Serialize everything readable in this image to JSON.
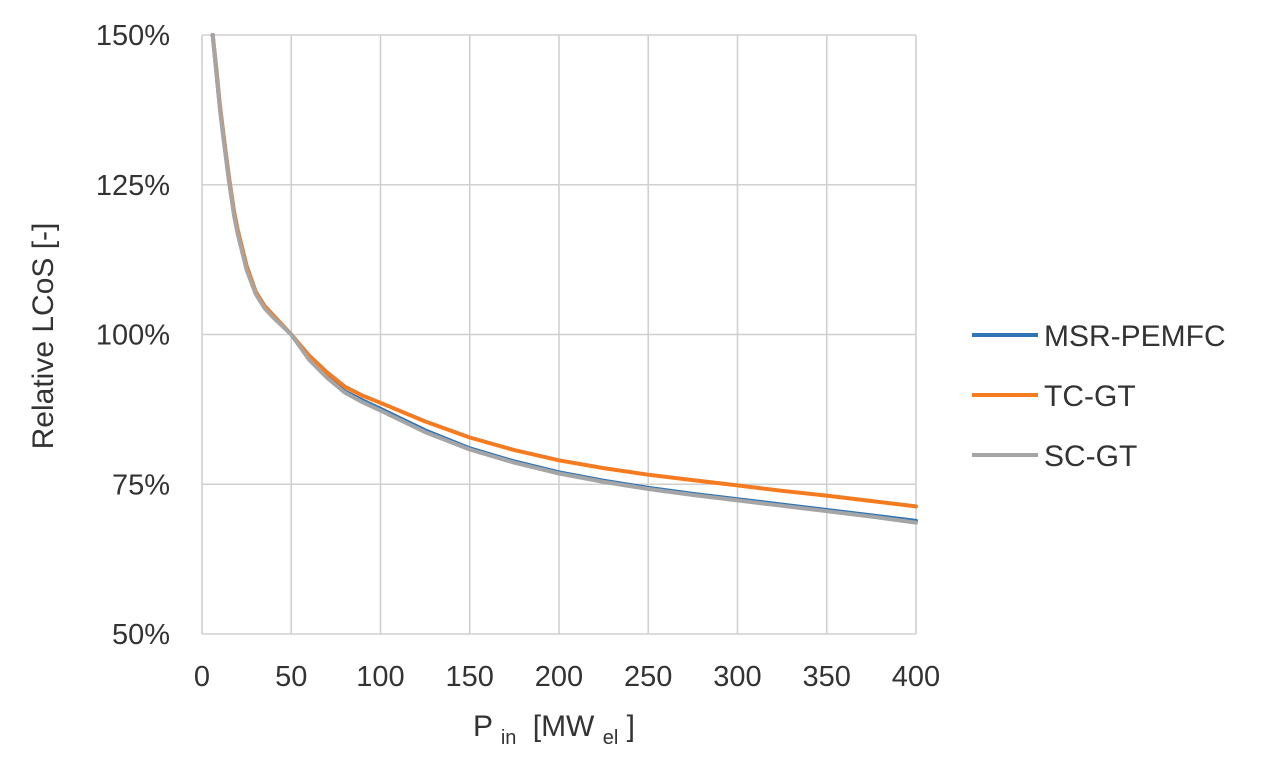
{
  "chart_data": {
    "type": "line",
    "title": "",
    "xlabel": {
      "main": "P",
      "main_sub": "in",
      "unit_open": "[MW",
      "unit_sub": "el",
      "unit_close": "]"
    },
    "ylabel": "Relative LCoS [-]",
    "xlim": [
      0,
      400
    ],
    "ylim": [
      0.5,
      1.5
    ],
    "x_ticks": [
      0,
      50,
      100,
      150,
      200,
      250,
      300,
      350,
      400
    ],
    "x_tick_labels": [
      "0",
      "50",
      "100",
      "150",
      "200",
      "250",
      "300",
      "350",
      "400"
    ],
    "y_ticks": [
      0.5,
      0.75,
      1.0,
      1.25,
      1.5
    ],
    "y_tick_labels": [
      "50%",
      "75%",
      "100%",
      "125%",
      "150%"
    ],
    "grid": true,
    "legend_position": "right",
    "series": [
      {
        "name": "MSR-PEMFC",
        "color": "#2e75b6",
        "x": [
          6,
          8,
          10,
          12,
          15,
          18,
          20,
          25,
          30,
          35,
          40,
          45,
          50,
          60,
          70,
          80,
          90,
          100,
          125,
          150,
          175,
          200,
          225,
          250,
          275,
          300,
          325,
          350,
          375,
          400
        ],
        "y": [
          1.5,
          1.44,
          1.38,
          1.33,
          1.26,
          1.2,
          1.17,
          1.11,
          1.07,
          1.045,
          1.03,
          1.015,
          1.0,
          0.96,
          0.93,
          0.905,
          0.89,
          0.876,
          0.84,
          0.81,
          0.788,
          0.77,
          0.756,
          0.744,
          0.734,
          0.725,
          0.716,
          0.707,
          0.698,
          0.689
        ]
      },
      {
        "name": "TC-GT",
        "color": "#f47b20",
        "x": [
          6,
          8,
          10,
          12,
          15,
          18,
          20,
          25,
          30,
          35,
          40,
          45,
          50,
          60,
          70,
          80,
          90,
          100,
          125,
          150,
          175,
          200,
          225,
          250,
          275,
          300,
          325,
          350,
          375,
          400
        ],
        "y": [
          1.5,
          1.445,
          1.385,
          1.335,
          1.265,
          1.205,
          1.175,
          1.115,
          1.072,
          1.048,
          1.032,
          1.016,
          1.0,
          0.965,
          0.937,
          0.913,
          0.898,
          0.886,
          0.855,
          0.828,
          0.807,
          0.79,
          0.777,
          0.766,
          0.757,
          0.748,
          0.739,
          0.731,
          0.722,
          0.713
        ]
      },
      {
        "name": "SC-GT",
        "color": "#a5a5a5",
        "x": [
          6,
          8,
          10,
          12,
          15,
          18,
          20,
          25,
          30,
          35,
          40,
          45,
          50,
          60,
          70,
          80,
          90,
          100,
          125,
          150,
          175,
          200,
          225,
          250,
          275,
          300,
          325,
          350,
          375,
          400
        ],
        "y": [
          1.5,
          1.438,
          1.378,
          1.328,
          1.258,
          1.198,
          1.168,
          1.108,
          1.068,
          1.044,
          1.028,
          1.014,
          1.0,
          0.958,
          0.928,
          0.903,
          0.887,
          0.873,
          0.837,
          0.808,
          0.786,
          0.768,
          0.754,
          0.742,
          0.732,
          0.723,
          0.714,
          0.705,
          0.696,
          0.686
        ]
      }
    ]
  }
}
